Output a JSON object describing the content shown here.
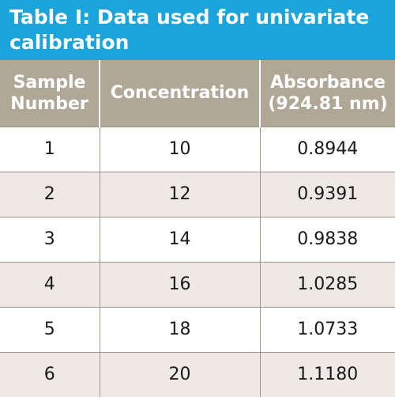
{
  "title": "Table I: Data used for univariate calibration",
  "colors": {
    "title_background": "#1aa4dc",
    "header_background": "#b1a797",
    "row_stripe": "#eee9e4",
    "row_plain": "#ffffff"
  },
  "table": {
    "headers": [
      "Sample Number",
      "Concentration",
      "Absorbance (924.81 nm)"
    ],
    "rows": [
      [
        "1",
        "10",
        "0.8944"
      ],
      [
        "2",
        "12",
        "0.9391"
      ],
      [
        "3",
        "14",
        "0.9838"
      ],
      [
        "4",
        "16",
        "1.0285"
      ],
      [
        "5",
        "18",
        "1.0733"
      ],
      [
        "6",
        "20",
        "1.1180"
      ]
    ]
  }
}
